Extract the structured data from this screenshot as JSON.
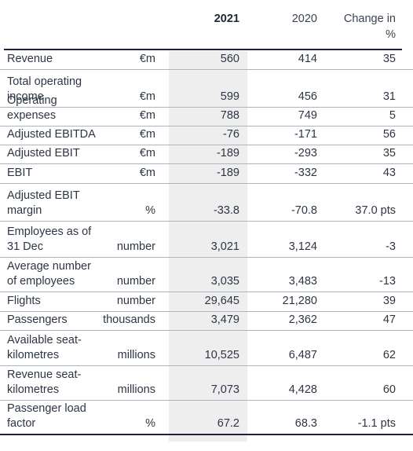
{
  "header": {
    "year_current": "2021",
    "year_prior": "2020",
    "change_label": "Change in %"
  },
  "rows": [
    {
      "label": "Revenue",
      "unit": "€m",
      "v2021": "560",
      "v2020": "414",
      "change": "35"
    },
    {
      "label": "Total operating income",
      "unit": "€m",
      "v2021": "599",
      "v2020": "456",
      "change": "31"
    },
    {
      "label": "Operating expenses",
      "unit": "€m",
      "v2021": "788",
      "v2020": "749",
      "change": "5"
    },
    {
      "label": "Adjusted EBITDA",
      "unit": "€m",
      "v2021": "-76",
      "v2020": "-171",
      "change": "56"
    },
    {
      "label": "Adjusted EBIT",
      "unit": "€m",
      "v2021": "-189",
      "v2020": "-293",
      "change": "35"
    },
    {
      "label": "EBIT",
      "unit": "€m",
      "v2021": "-189",
      "v2020": "-332",
      "change": "43"
    },
    {
      "label": "Adjusted EBIT margin",
      "unit": "%",
      "v2021": "-33.8",
      "v2020": "-70.8",
      "change": "37.0 pts"
    },
    {
      "label": "Employees as of 31 Dec",
      "unit": "number",
      "v2021": "3,021",
      "v2020": "3,124",
      "change": "-3"
    },
    {
      "label": "Average number of employees",
      "unit": "number",
      "v2021": "3,035",
      "v2020": "3,483",
      "change": "-13"
    },
    {
      "label": "Flights",
      "unit": "number",
      "v2021": "29,645",
      "v2020": "21,280",
      "change": "39"
    },
    {
      "label": "Passengers",
      "unit": "thousands",
      "v2021": "3,479",
      "v2020": "2,362",
      "change": "47"
    },
    {
      "label": "Available seat-kilometres",
      "unit": "millions",
      "v2021": "10,525",
      "v2020": "6,487",
      "change": "62"
    },
    {
      "label": "Revenue seat-kilometres",
      "unit": "millions",
      "v2021": "7,073",
      "v2020": "4,428",
      "change": "60"
    },
    {
      "label": "Passenger load factor",
      "unit": "%",
      "v2021": "67.2",
      "v2020": "68.3",
      "change": "-1.1 pts"
    }
  ]
}
